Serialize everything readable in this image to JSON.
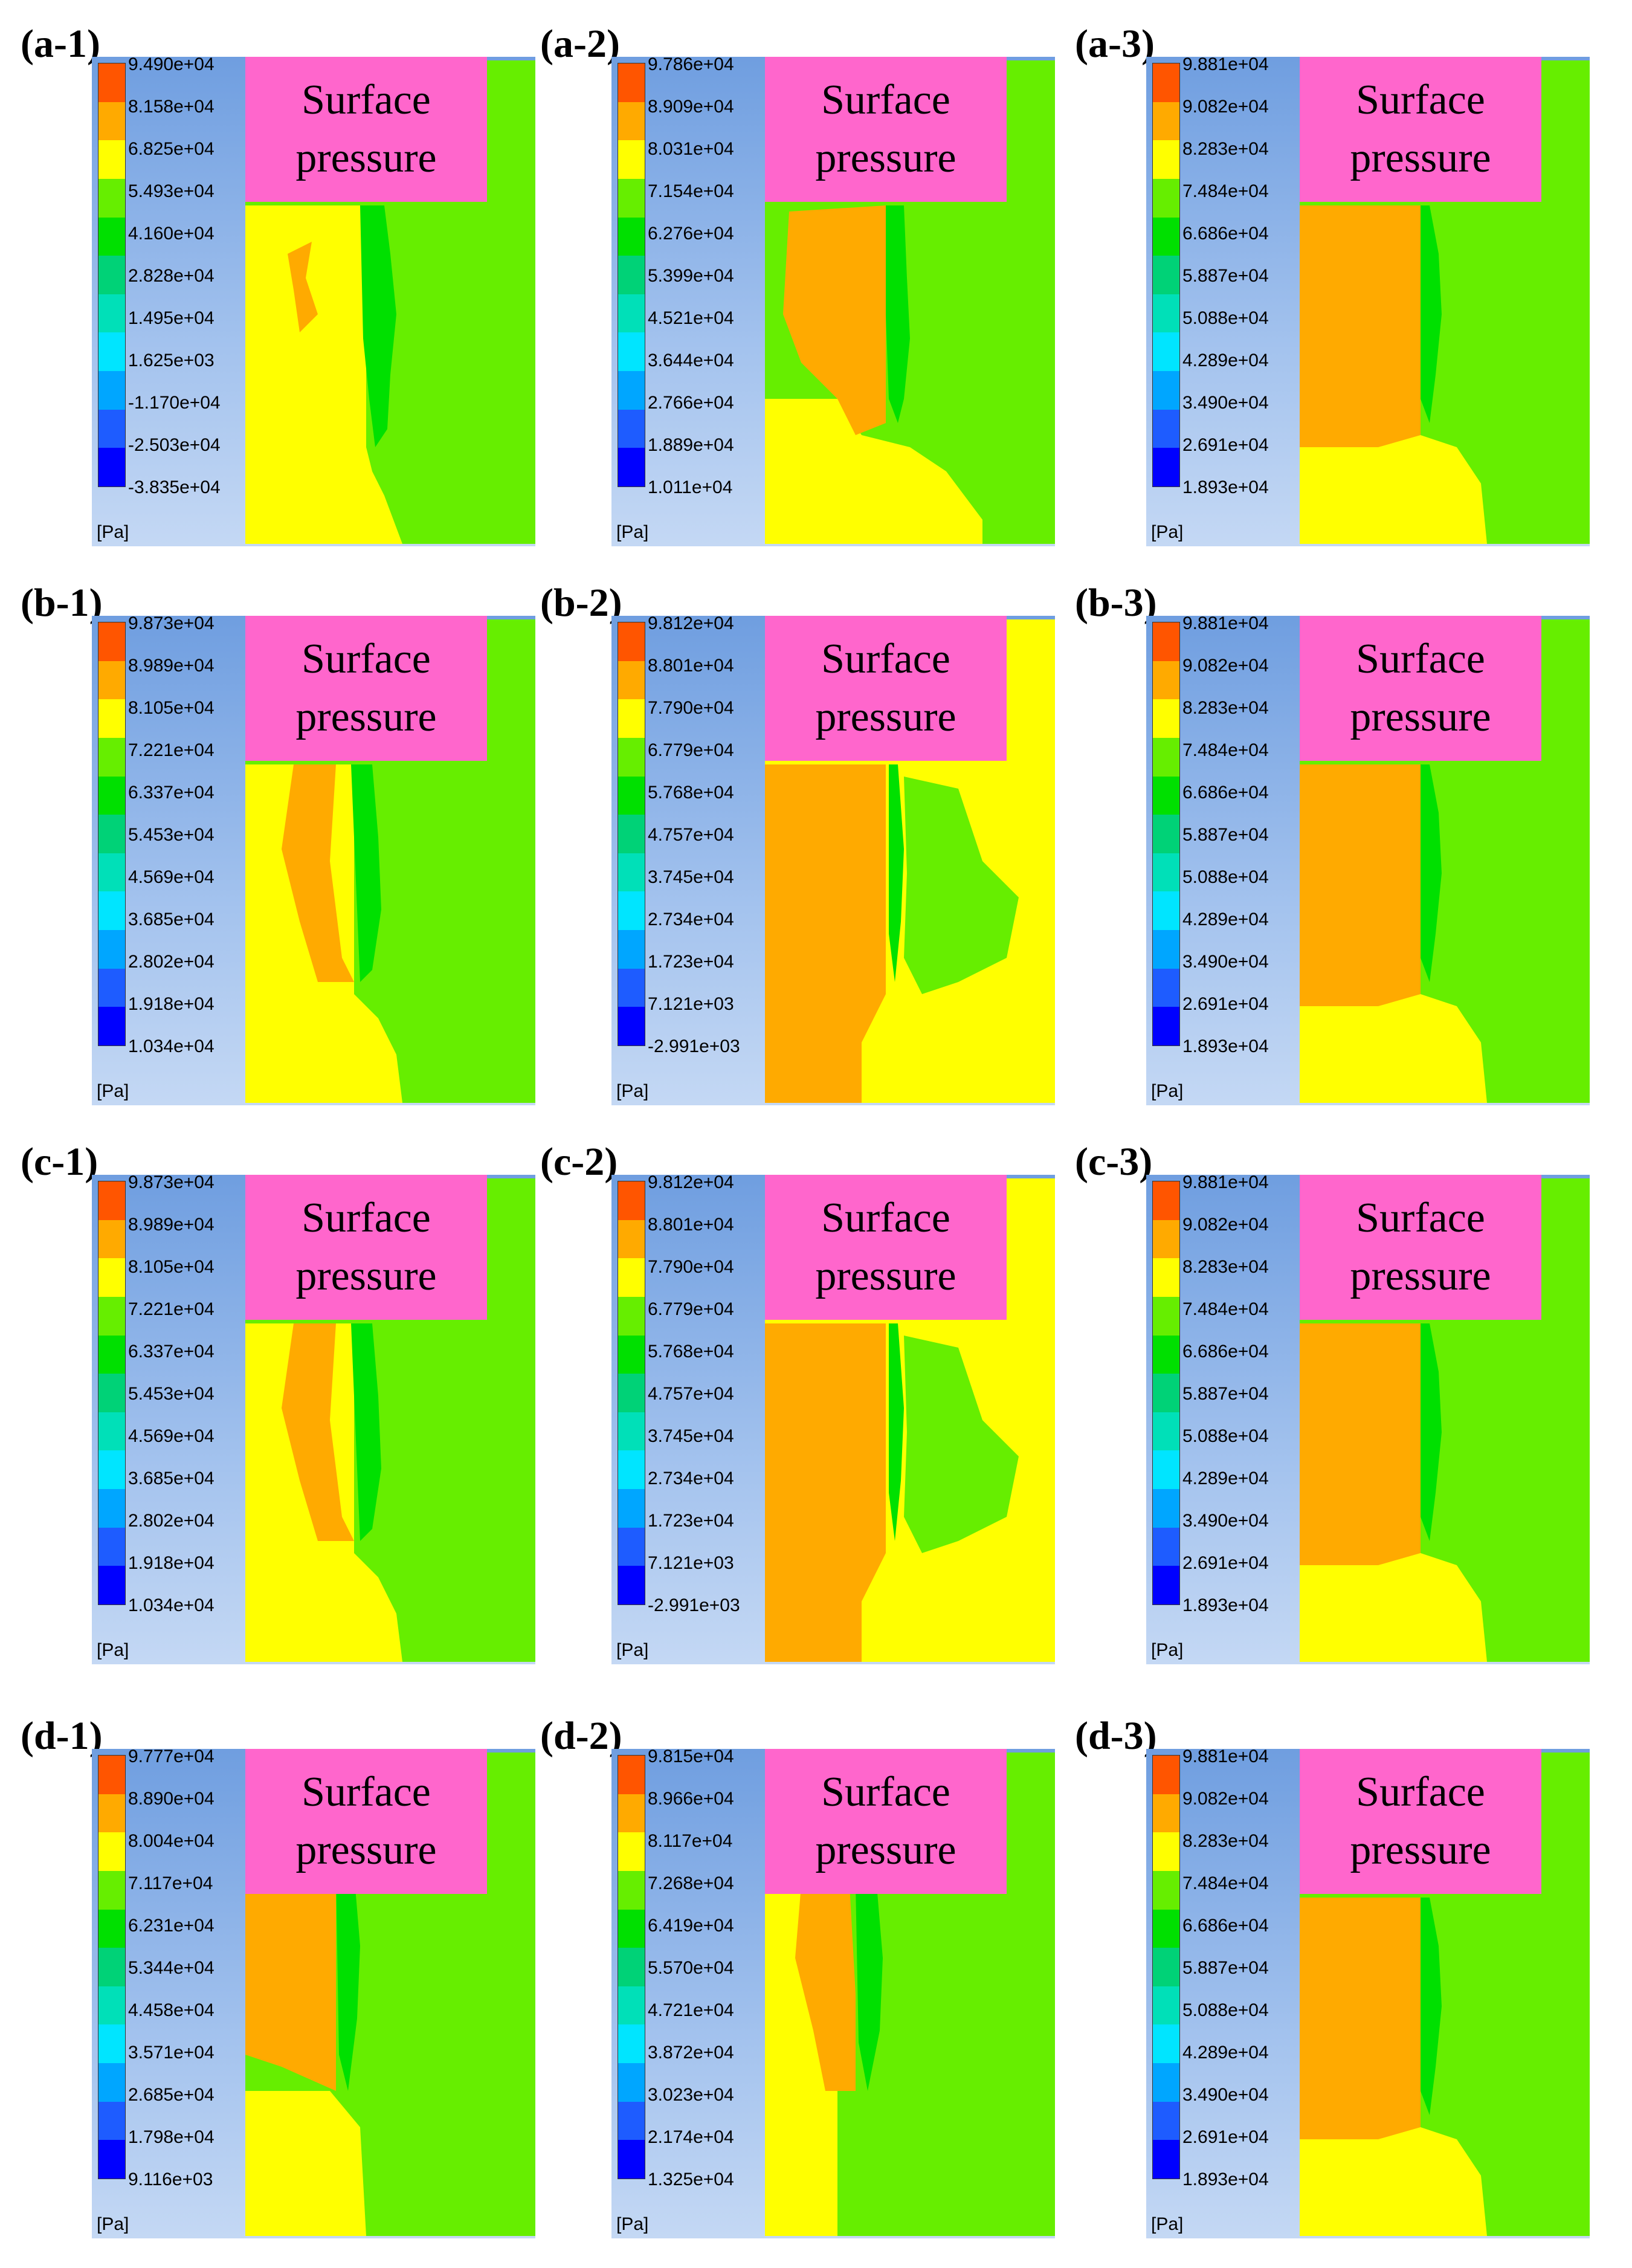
{
  "colors": {
    "label_box": "#ff66cc",
    "colormap": [
      "#0000ff",
      "#1e5cff",
      "#00a6ff",
      "#00e5ff",
      "#00e0b8",
      "#00d277",
      "#00e000",
      "#66ee00",
      "#ffff00",
      "#ffaa00",
      "#ff5500"
    ]
  },
  "unit": "[Pa]",
  "label_text": [
    "Surface",
    "pressure"
  ],
  "panels": [
    {
      "id": "(a-1)",
      "ticks": [
        "9.490e+04",
        "8.158e+04",
        "6.825e+04",
        "5.493e+04",
        "4.160e+04",
        "2.828e+04",
        "1.495e+04",
        "1.625e+03",
        "-1.170e+04",
        "-2.503e+04",
        "-3.835e+04"
      ],
      "pattern": "a1"
    },
    {
      "id": "(a-2)",
      "ticks": [
        "9.786e+04",
        "8.909e+04",
        "8.031e+04",
        "7.154e+04",
        "6.276e+04",
        "5.399e+04",
        "4.521e+04",
        "3.644e+04",
        "2.766e+04",
        "1.889e+04",
        "1.011e+04"
      ],
      "pattern": "a2"
    },
    {
      "id": "(a-3)",
      "ticks": [
        "9.881e+04",
        "9.082e+04",
        "8.283e+04",
        "7.484e+04",
        "6.686e+04",
        "5.887e+04",
        "5.088e+04",
        "4.289e+04",
        "3.490e+04",
        "2.691e+04",
        "1.893e+04"
      ],
      "pattern": "x3"
    },
    {
      "id": "(b-1)",
      "ticks": [
        "9.873e+04",
        "8.989e+04",
        "8.105e+04",
        "7.221e+04",
        "6.337e+04",
        "5.453e+04",
        "4.569e+04",
        "3.685e+04",
        "2.802e+04",
        "1.918e+04",
        "1.034e+04"
      ],
      "pattern": "b1"
    },
    {
      "id": "(b-2)",
      "ticks": [
        "9.812e+04",
        "8.801e+04",
        "7.790e+04",
        "6.779e+04",
        "5.768e+04",
        "4.757e+04",
        "3.745e+04",
        "2.734e+04",
        "1.723e+04",
        "7.121e+03",
        "-2.991e+03"
      ],
      "pattern": "b2"
    },
    {
      "id": "(b-3)",
      "ticks": [
        "9.881e+04",
        "9.082e+04",
        "8.283e+04",
        "7.484e+04",
        "6.686e+04",
        "5.887e+04",
        "5.088e+04",
        "4.289e+04",
        "3.490e+04",
        "2.691e+04",
        "1.893e+04"
      ],
      "pattern": "x3"
    },
    {
      "id": "(c-1)",
      "ticks": [
        "9.873e+04",
        "8.989e+04",
        "8.105e+04",
        "7.221e+04",
        "6.337e+04",
        "5.453e+04",
        "4.569e+04",
        "3.685e+04",
        "2.802e+04",
        "1.918e+04",
        "1.034e+04"
      ],
      "pattern": "b1"
    },
    {
      "id": "(c-2)",
      "ticks": [
        "9.812e+04",
        "8.801e+04",
        "7.790e+04",
        "6.779e+04",
        "5.768e+04",
        "4.757e+04",
        "3.745e+04",
        "2.734e+04",
        "1.723e+04",
        "7.121e+03",
        "-2.991e+03"
      ],
      "pattern": "b2"
    },
    {
      "id": "(c-3)",
      "ticks": [
        "9.881e+04",
        "9.082e+04",
        "8.283e+04",
        "7.484e+04",
        "6.686e+04",
        "5.887e+04",
        "5.088e+04",
        "4.289e+04",
        "3.490e+04",
        "2.691e+04",
        "1.893e+04"
      ],
      "pattern": "x3"
    },
    {
      "id": "(d-1)",
      "ticks": [
        "9.777e+04",
        "8.890e+04",
        "8.004e+04",
        "7.117e+04",
        "6.231e+04",
        "5.344e+04",
        "4.458e+04",
        "3.571e+04",
        "2.685e+04",
        "1.798e+04",
        "9.116e+03"
      ],
      "pattern": "d1"
    },
    {
      "id": "(d-2)",
      "ticks": [
        "9.815e+04",
        "8.966e+04",
        "8.117e+04",
        "7.268e+04",
        "6.419e+04",
        "5.570e+04",
        "4.721e+04",
        "3.872e+04",
        "3.023e+04",
        "2.174e+04",
        "1.325e+04"
      ],
      "pattern": "d2"
    },
    {
      "id": "(d-3)",
      "ticks": [
        "9.881e+04",
        "9.082e+04",
        "8.283e+04",
        "7.484e+04",
        "6.686e+04",
        "5.887e+04",
        "5.088e+04",
        "4.289e+04",
        "3.490e+04",
        "2.691e+04",
        "1.893e+04"
      ],
      "pattern": "x3"
    }
  ]
}
